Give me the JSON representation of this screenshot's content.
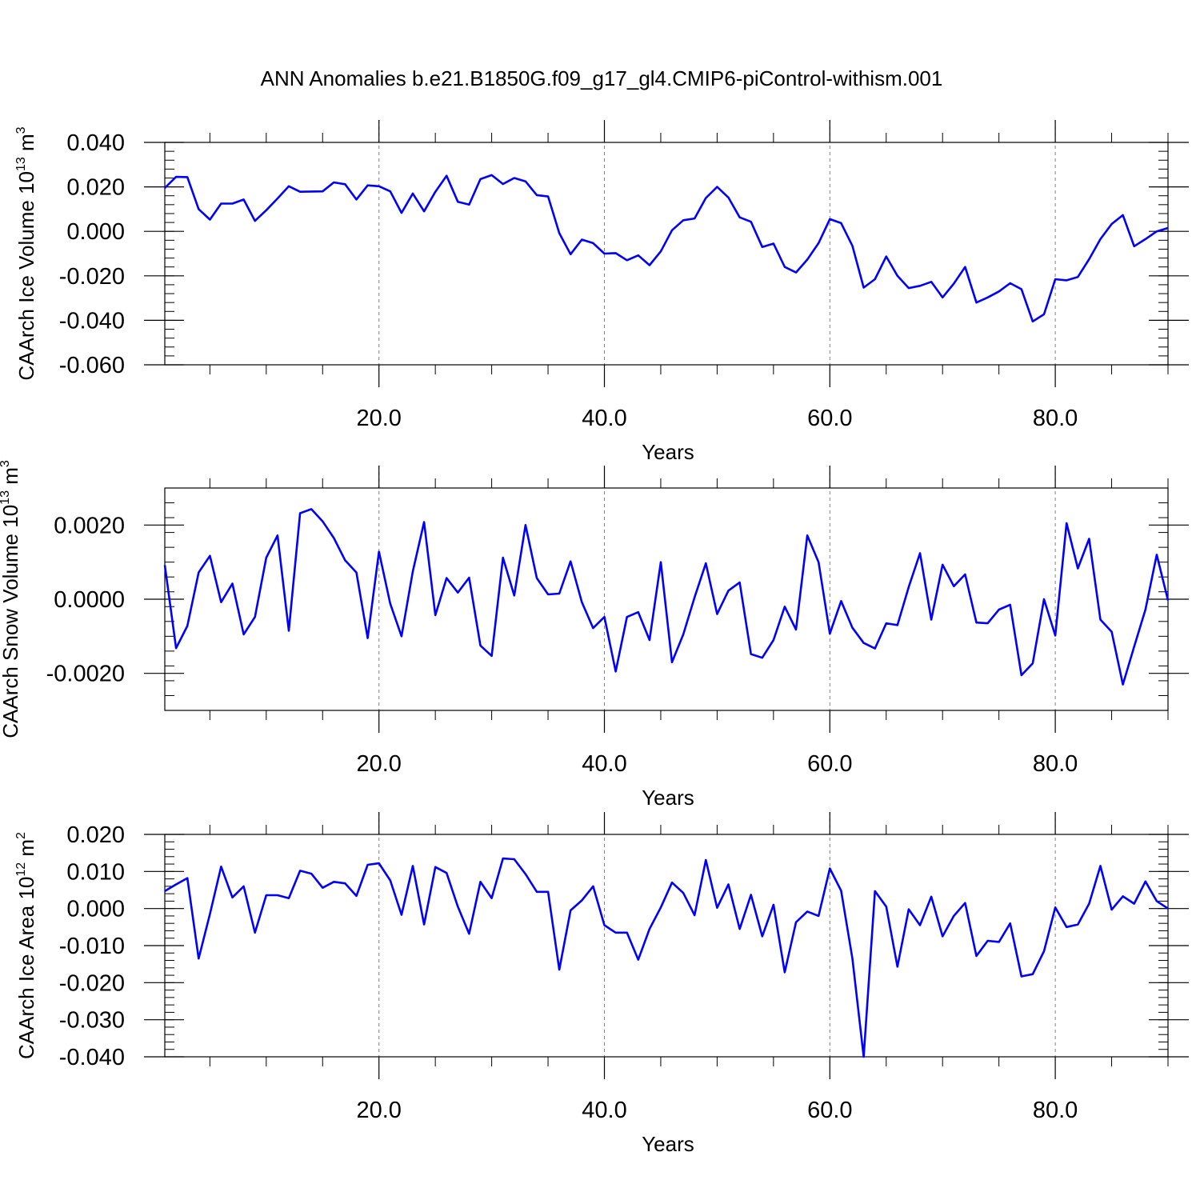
{
  "title": "ANN Anomalies b.e21.B1850G.f09_g17_gl4.CMIP6-piControl-withism.001",
  "colors": {
    "line": "#0000ff",
    "axis": "#000000",
    "grid": "#808080"
  },
  "chart_data": [
    {
      "type": "line",
      "ylabel": {
        "text": "CAArch Ice Volume 10",
        "exp": "13",
        "unit": " m",
        "unit_exp": "3"
      },
      "xlabel": "Years",
      "xlim": [
        1,
        90
      ],
      "ylim": [
        -0.06,
        0.04
      ],
      "xticks": [
        20,
        40,
        60,
        80
      ],
      "xtick_labels": [
        "20.0",
        "40.0",
        "60.0",
        "80.0"
      ],
      "yticks": [
        -0.06,
        -0.04,
        -0.02,
        0.0,
        0.02,
        0.04
      ],
      "ytick_labels": [
        "-0.060",
        "-0.040",
        "-0.020",
        "0.000",
        "0.020",
        "0.040"
      ],
      "grid": "vertical dashed at major x ticks",
      "x": [
        1,
        2,
        3,
        4,
        5,
        6,
        7,
        8,
        9,
        10,
        11,
        12,
        13,
        14,
        15,
        16,
        17,
        18,
        19,
        20,
        21,
        22,
        23,
        24,
        25,
        26,
        27,
        28,
        29,
        30,
        31,
        32,
        33,
        34,
        35,
        36,
        37,
        38,
        39,
        40,
        41,
        42,
        43,
        44,
        45,
        46,
        47,
        48,
        49,
        50,
        51,
        52,
        53,
        54,
        55,
        56,
        57,
        58,
        59,
        60,
        61,
        62,
        63,
        64,
        65,
        66,
        67,
        68,
        69,
        70,
        71,
        72,
        73,
        74,
        75,
        76,
        77,
        78,
        79,
        80,
        81,
        82,
        83,
        84,
        85,
        86,
        87,
        88,
        89,
        90
      ],
      "values": [
        0.0195,
        0.0245,
        0.0244,
        0.01,
        0.0053,
        0.0125,
        0.0125,
        0.0143,
        0.0047,
        0.0095,
        0.0148,
        0.0203,
        0.0178,
        0.0179,
        0.018,
        0.022,
        0.0212,
        0.0143,
        0.0207,
        0.0203,
        0.018,
        0.0083,
        0.017,
        0.009,
        0.0178,
        0.025,
        0.0133,
        0.012,
        0.0235,
        0.0253,
        0.0213,
        0.024,
        0.0225,
        0.0163,
        0.0157,
        -0.0008,
        -0.0103,
        -0.0037,
        -0.0053,
        -0.01,
        -0.0098,
        -0.013,
        -0.0108,
        -0.0152,
        -0.009,
        0.0005,
        0.005,
        0.0058,
        0.015,
        0.02,
        0.0152,
        0.0063,
        0.0043,
        -0.007,
        -0.0055,
        -0.016,
        -0.0185,
        -0.0127,
        -0.0053,
        0.0055,
        0.0037,
        -0.0065,
        -0.0253,
        -0.0215,
        -0.0113,
        -0.02,
        -0.0255,
        -0.0245,
        -0.0227,
        -0.0297,
        -0.0235,
        -0.016,
        -0.032,
        -0.0297,
        -0.027,
        -0.0233,
        -0.026,
        -0.0405,
        -0.0373,
        -0.0215,
        -0.022,
        -0.0205,
        -0.0125,
        -0.0035,
        0.0033,
        0.0073,
        -0.0067,
        -0.0035,
        0.0,
        0.0015
      ]
    },
    {
      "type": "line",
      "ylabel": {
        "text": "CAArch Snow Volume 10",
        "exp": "13",
        "unit": " m",
        "unit_exp": "3"
      },
      "xlabel": "Years",
      "xlim": [
        1,
        90
      ],
      "ylim": [
        -0.003,
        0.003
      ],
      "xticks": [
        20,
        40,
        60,
        80
      ],
      "xtick_labels": [
        "20.0",
        "40.0",
        "60.0",
        "80.0"
      ],
      "yticks": [
        -0.002,
        0.0,
        0.002
      ],
      "ytick_labels": [
        "-0.0020",
        "0.0000",
        "0.0020"
      ],
      "grid": "vertical dashed at major x ticks",
      "x": [
        1,
        2,
        3,
        4,
        5,
        6,
        7,
        8,
        9,
        10,
        11,
        12,
        13,
        14,
        15,
        16,
        17,
        18,
        19,
        20,
        21,
        22,
        23,
        24,
        25,
        26,
        27,
        28,
        29,
        30,
        31,
        32,
        33,
        34,
        35,
        36,
        37,
        38,
        39,
        40,
        41,
        42,
        43,
        44,
        45,
        46,
        47,
        48,
        49,
        50,
        51,
        52,
        53,
        54,
        55,
        56,
        57,
        58,
        59,
        60,
        61,
        62,
        63,
        64,
        65,
        66,
        67,
        68,
        69,
        70,
        71,
        72,
        73,
        74,
        75,
        76,
        77,
        78,
        79,
        80,
        81,
        82,
        83,
        84,
        85,
        86,
        87,
        88,
        89,
        90
      ],
      "values": [
        0.00092,
        -0.00132,
        -0.00072,
        0.00072,
        0.00117,
        -8e-05,
        0.00042,
        -0.00095,
        -0.00048,
        0.00112,
        0.00172,
        -0.00085,
        0.00232,
        0.00243,
        0.0021,
        0.00165,
        0.00105,
        0.00072,
        -0.00105,
        0.00128,
        -0.00012,
        -0.001,
        0.00075,
        0.00208,
        -0.00043,
        0.00057,
        0.00018,
        0.00058,
        -0.00125,
        -0.00153,
        0.00112,
        0.0001,
        0.002,
        0.00057,
        0.00013,
        0.00015,
        0.00102,
        -8e-05,
        -0.00078,
        -0.00048,
        -0.00195,
        -0.00048,
        -0.00035,
        -0.0011,
        0.001,
        -0.0017,
        -0.00095,
        5e-05,
        0.00097,
        -0.0004,
        0.00023,
        0.00045,
        -0.00148,
        -0.00158,
        -0.0011,
        -0.0002,
        -0.00082,
        0.00172,
        0.001,
        -0.00093,
        -5e-05,
        -0.00077,
        -0.00118,
        -0.00133,
        -0.00065,
        -0.0007,
        0.00033,
        0.00124,
        -0.00055,
        0.00093,
        0.00035,
        0.00067,
        -0.00063,
        -0.00065,
        -0.00028,
        -0.00015,
        -0.00205,
        -0.00173,
        0.0,
        -0.00098,
        0.00205,
        0.00083,
        0.00163,
        -0.00055,
        -0.00088,
        -0.0023,
        -0.00128,
        -0.00028,
        0.0012,
        -3e-05
      ]
    },
    {
      "type": "line",
      "ylabel": {
        "text": "CAArch Ice Area 10",
        "exp": "12",
        "unit": " m",
        "unit_exp": "2"
      },
      "xlabel": "Years",
      "xlim": [
        1,
        90
      ],
      "ylim": [
        -0.04,
        0.02
      ],
      "xticks": [
        20,
        40,
        60,
        80
      ],
      "xtick_labels": [
        "20.0",
        "40.0",
        "60.0",
        "80.0"
      ],
      "yticks": [
        -0.04,
        -0.03,
        -0.02,
        -0.01,
        0.0,
        0.01,
        0.02
      ],
      "ytick_labels": [
        "-0.040",
        "-0.030",
        "-0.020",
        "-0.010",
        "0.000",
        "0.010",
        "0.020"
      ],
      "grid": "vertical dashed at major x ticks",
      "x": [
        1,
        2,
        3,
        4,
        5,
        6,
        7,
        8,
        9,
        10,
        11,
        12,
        13,
        14,
        15,
        16,
        17,
        18,
        19,
        20,
        21,
        22,
        23,
        24,
        25,
        26,
        27,
        28,
        29,
        30,
        31,
        32,
        33,
        34,
        35,
        36,
        37,
        38,
        39,
        40,
        41,
        42,
        43,
        44,
        45,
        46,
        47,
        48,
        49,
        50,
        51,
        52,
        53,
        54,
        55,
        56,
        57,
        58,
        59,
        60,
        61,
        62,
        63,
        64,
        65,
        66,
        67,
        68,
        69,
        70,
        71,
        72,
        73,
        74,
        75,
        76,
        77,
        78,
        79,
        80,
        81,
        82,
        83,
        84,
        85,
        86,
        87,
        88,
        89,
        90
      ],
      "values": [
        0.0047,
        0.0065,
        0.0082,
        -0.0135,
        -0.0015,
        0.0113,
        0.003,
        0.006,
        -0.0065,
        0.0036,
        0.0036,
        0.0028,
        0.0102,
        0.0094,
        0.0056,
        0.0072,
        0.0068,
        0.0034,
        0.0118,
        0.0122,
        0.0076,
        -0.0017,
        0.0115,
        -0.0043,
        0.0112,
        0.0096,
        0.0005,
        -0.0068,
        0.0072,
        0.0028,
        0.0135,
        0.0133,
        0.0093,
        0.0045,
        0.0045,
        -0.0165,
        -0.0005,
        0.0022,
        0.006,
        -0.0045,
        -0.0065,
        -0.0065,
        -0.0138,
        -0.0055,
        0.0003,
        0.007,
        0.0042,
        -0.0018,
        0.0131,
        0.0002,
        0.0065,
        -0.0055,
        0.0037,
        -0.0075,
        0.001,
        -0.0172,
        -0.0037,
        -0.0008,
        -0.002,
        0.0108,
        0.0048,
        -0.0135,
        -0.04,
        0.0047,
        0.0005,
        -0.0157,
        -0.0002,
        -0.0045,
        0.0032,
        -0.0075,
        -0.002,
        0.0015,
        -0.0128,
        -0.0087,
        -0.009,
        -0.004,
        -0.0183,
        -0.0177,
        -0.0115,
        0.0003,
        -0.005,
        -0.0043,
        0.0013,
        0.0115,
        -0.0003,
        0.0033,
        0.0013,
        0.0073,
        0.002,
        0.0
      ]
    }
  ]
}
